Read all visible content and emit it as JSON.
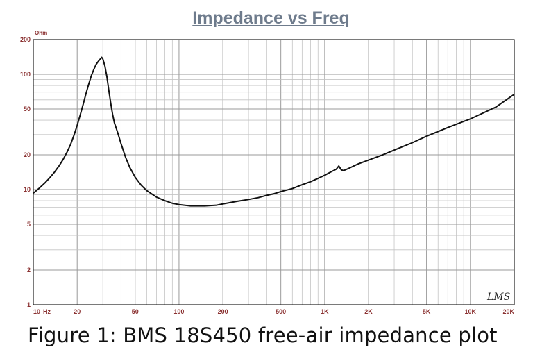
{
  "chart_data": {
    "type": "line",
    "title": "Impedance vs Freq",
    "ylabel": "Ohm",
    "xscale": "log",
    "yscale": "log",
    "xlim": [
      10,
      20000
    ],
    "ylim": [
      1,
      200
    ],
    "grid": true,
    "x_ticks": [
      {
        "value": 10,
        "label": "10"
      },
      {
        "value": 20,
        "label": "20"
      },
      {
        "value": 50,
        "label": "50"
      },
      {
        "value": 100,
        "label": "100"
      },
      {
        "value": 200,
        "label": "200"
      },
      {
        "value": 500,
        "label": "500"
      },
      {
        "value": 1000,
        "label": "1K"
      },
      {
        "value": 2000,
        "label": "2K"
      },
      {
        "value": 5000,
        "label": "5K"
      },
      {
        "value": 10000,
        "label": "10K"
      },
      {
        "value": 20000,
        "label": "20K"
      }
    ],
    "x_unit_label": "Hz",
    "y_ticks": [
      {
        "value": 1,
        "label": "1"
      },
      {
        "value": 2,
        "label": "2"
      },
      {
        "value": 5,
        "label": "5"
      },
      {
        "value": 10,
        "label": "10"
      },
      {
        "value": 20,
        "label": "20"
      },
      {
        "value": 50,
        "label": "50"
      },
      {
        "value": 100,
        "label": "100"
      },
      {
        "value": 200,
        "label": "200"
      }
    ],
    "series": [
      {
        "color": "#111111",
        "x": [
          10,
          11,
          12,
          13,
          14,
          15,
          16,
          17,
          18,
          19,
          20,
          21,
          22,
          23,
          24,
          25,
          26,
          27,
          28,
          29,
          29.5,
          30,
          31,
          32,
          33,
          34,
          35,
          36,
          38,
          40,
          43,
          46,
          50,
          55,
          60,
          70,
          80,
          90,
          100,
          120,
          150,
          180,
          200,
          250,
          300,
          350,
          400,
          450,
          500,
          600,
          700,
          800,
          900,
          1000,
          1100,
          1200,
          1250,
          1300,
          1350,
          1400,
          1500,
          1700,
          2000,
          2500,
          3000,
          4000,
          5000,
          7000,
          10000,
          15000,
          20000
        ],
        "y": [
          9.3,
          10.3,
          11.4,
          12.7,
          14.2,
          16.0,
          18.2,
          21.0,
          24.5,
          29.5,
          36.0,
          44.5,
          55.0,
          68.0,
          82.0,
          97.0,
          110.0,
          122.0,
          130.0,
          137.0,
          140.0,
          136.0,
          118.0,
          95.0,
          72.0,
          56.0,
          45.0,
          38.0,
          31.0,
          25.0,
          19.0,
          15.5,
          12.8,
          10.9,
          9.8,
          8.6,
          8.0,
          7.6,
          7.4,
          7.2,
          7.2,
          7.3,
          7.5,
          7.9,
          8.2,
          8.5,
          8.9,
          9.2,
          9.6,
          10.2,
          11.0,
          11.7,
          12.5,
          13.3,
          14.2,
          15.0,
          16.0,
          14.8,
          14.6,
          14.9,
          15.5,
          16.7,
          18.0,
          20.0,
          22.0,
          25.5,
          29.0,
          34.5,
          41.0,
          52.0,
          67.0
        ]
      }
    ]
  },
  "logo_text": "LMS",
  "caption": "Figure 1: BMS 18S450 free-air impedance plot"
}
